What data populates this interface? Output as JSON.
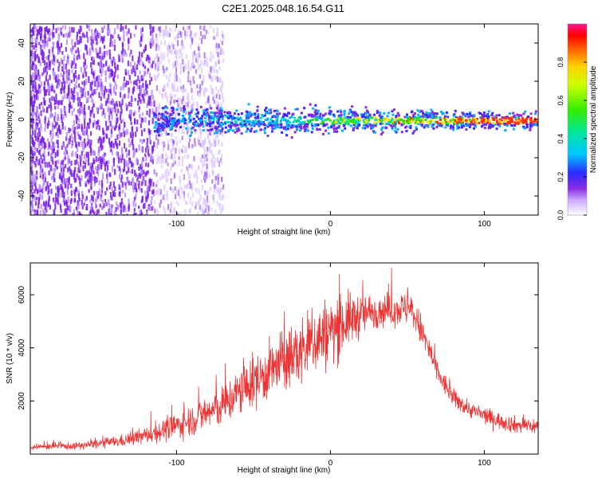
{
  "title": "C2E1.2025.048.16.54.G11",
  "chart_data": [
    {
      "type": "heatmap",
      "name": "spectrogram",
      "xlabel": "Height of straight line (km)",
      "ylabel": "Frequency (Hz)",
      "xlim": [
        -195,
        135
      ],
      "ylim": [
        -50,
        50
      ],
      "xticks": [
        -100,
        0,
        100
      ],
      "yticks": [
        -40,
        -20,
        0,
        20,
        40
      ],
      "signal_center_hz": 0,
      "signal_start_km": -115,
      "noise_extent_km": -70,
      "colorbar": {
        "label": "Normalized spectral amplitude",
        "range": [
          0.0,
          1.0
        ],
        "ticks": [
          "0.0",
          "0.2",
          "0.4",
          "0.6",
          "0.8"
        ],
        "colors": [
          "#ffffff",
          "#c8a8ff",
          "#8a2be2",
          "#2a2aff",
          "#00c8ff",
          "#00e67a",
          "#66ee00",
          "#ffff00",
          "#ff8c00",
          "#ff0000",
          "#ff1493"
        ]
      },
      "series_color": "#8a2be2"
    },
    {
      "type": "line",
      "name": "snr",
      "xlabel": "Height of straight line (km)",
      "ylabel": "SNR (10 * v/v)",
      "xlim": [
        -195,
        135
      ],
      "ylim": [
        0,
        7200
      ],
      "xticks": [
        -100,
        0,
        100
      ],
      "yticks": [
        2000,
        4000,
        6000
      ],
      "series": [
        {
          "name": "SNR",
          "color": "#ee3333",
          "x": [
            -195,
            -180,
            -165,
            -150,
            -135,
            -120,
            -105,
            -90,
            -80,
            -70,
            -60,
            -50,
            -40,
            -30,
            -20,
            -10,
            0,
            10,
            20,
            30,
            40,
            50,
            55,
            60,
            65,
            70,
            80,
            90,
            100,
            110,
            120,
            135
          ],
          "y": [
            250,
            300,
            300,
            400,
            500,
            700,
            950,
            1300,
            1550,
            1800,
            2300,
            2700,
            3100,
            3500,
            3800,
            4300,
            4600,
            5000,
            5250,
            5400,
            5450,
            5500,
            5200,
            4500,
            3800,
            3000,
            2100,
            1700,
            1450,
            1250,
            1100,
            1050
          ],
          "spread": [
            120,
            150,
            150,
            200,
            250,
            350,
            500,
            650,
            750,
            850,
            1000,
            1100,
            1200,
            1300,
            1400,
            1500,
            1500,
            1200,
            900,
            700,
            700,
            700,
            700,
            700,
            600,
            500,
            400,
            350,
            350,
            350,
            350,
            350
          ]
        }
      ]
    }
  ]
}
